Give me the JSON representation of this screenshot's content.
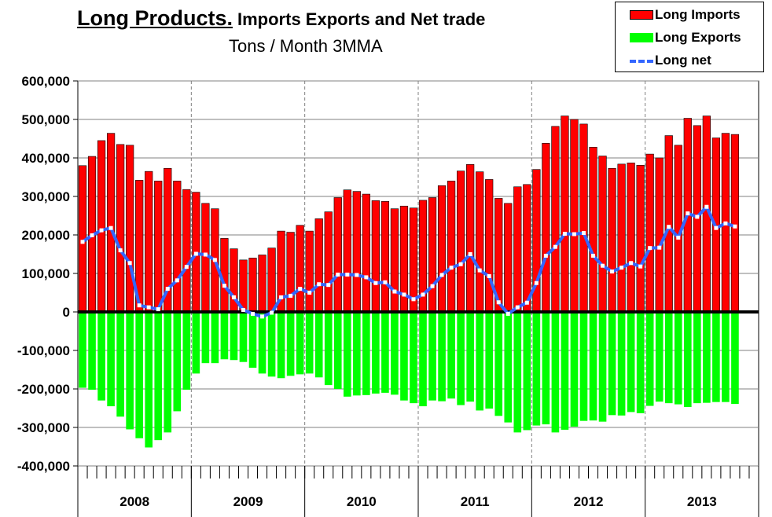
{
  "title": {
    "main": "Long Products.",
    "rest": "Imports Exports and Net trade"
  },
  "subtitle": "Tons / Month 3MMA",
  "legend": {
    "imports_label": "Long Imports",
    "exports_label": "Long Exports",
    "net_label": "Long net"
  },
  "colors": {
    "imports": "#ff0000",
    "exports": "#00ff00",
    "net": "#3366ff",
    "gridline": "#808080",
    "zero_line": "#000000"
  },
  "chart_data": {
    "type": "bar",
    "x_unit": "month",
    "x_start": "Jan 2008",
    "year_labels": [
      "2008",
      "2009",
      "2010",
      "2011",
      "2012",
      "2013"
    ],
    "ylim": [
      -400000,
      600000
    ],
    "y_ticks": [
      "600,000",
      "500,000",
      "400,000",
      "300,000",
      "200,000",
      "100,000",
      "0",
      "-100,000",
      "-200,000",
      "-300,000",
      "-400,000"
    ],
    "grid": true,
    "legend_position": "top-right",
    "series": [
      {
        "name": "Long Imports",
        "type": "bar",
        "values": [
          380000,
          404000,
          445000,
          464000,
          435000,
          433000,
          342000,
          365000,
          340000,
          373000,
          340000,
          318000,
          311000,
          282000,
          268000,
          191000,
          164000,
          135000,
          140000,
          148000,
          166000,
          210000,
          207000,
          225000,
          210000,
          242000,
          260000,
          297000,
          317000,
          313000,
          306000,
          289000,
          287000,
          268000,
          275000,
          270000,
          290000,
          297000,
          328000,
          340000,
          366000,
          383000,
          364000,
          344000,
          295000,
          282000,
          325000,
          331000,
          370000,
          438000,
          482000,
          509000,
          500000,
          488000,
          428000,
          405000,
          373000,
          384000,
          387000,
          381000,
          410000,
          400000,
          458000,
          433000,
          503000,
          484000,
          509000,
          452000,
          464000,
          461000
        ]
      },
      {
        "name": "Long Exports",
        "type": "bar",
        "values": [
          -197000,
          -202000,
          -230000,
          -245000,
          -272000,
          -305000,
          -328000,
          -352000,
          -333000,
          -313000,
          -258000,
          -202000,
          -160000,
          -133000,
          -133000,
          -123000,
          -125000,
          -130000,
          -145000,
          -160000,
          -168000,
          -172000,
          -166000,
          -162000,
          -160000,
          -170000,
          -190000,
          -200000,
          -220000,
          -217000,
          -216000,
          -212000,
          -210000,
          -215000,
          -230000,
          -237000,
          -245000,
          -230000,
          -232000,
          -225000,
          -242000,
          -233000,
          -256000,
          -251000,
          -270000,
          -287000,
          -313000,
          -307000,
          -295000,
          -292000,
          -313000,
          -306000,
          -298000,
          -283000,
          -282000,
          -285000,
          -268000,
          -269000,
          -260000,
          -263000,
          -244000,
          -233000,
          -237000,
          -240000,
          -247000,
          -237000,
          -236000,
          -234000,
          -234000,
          -239000
        ]
      },
      {
        "name": "Long net",
        "type": "line",
        "values": [
          182000,
          199000,
          212000,
          218000,
          160000,
          127000,
          17000,
          12000,
          7000,
          60000,
          82000,
          117000,
          151000,
          149000,
          135000,
          68000,
          38000,
          5000,
          -5000,
          -12000,
          -2000,
          38000,
          42000,
          60000,
          50000,
          72000,
          70000,
          97000,
          97000,
          96000,
          90000,
          75000,
          77000,
          53000,
          45000,
          33000,
          45000,
          67000,
          96000,
          115000,
          124000,
          150000,
          108000,
          93000,
          25000,
          -5000,
          12000,
          24000,
          75000,
          146000,
          169000,
          203000,
          202000,
          205000,
          146000,
          120000,
          105000,
          115000,
          127000,
          118000,
          166000,
          167000,
          221000,
          193000,
          256000,
          247000,
          273000,
          218000,
          230000,
          222000
        ]
      }
    ]
  }
}
